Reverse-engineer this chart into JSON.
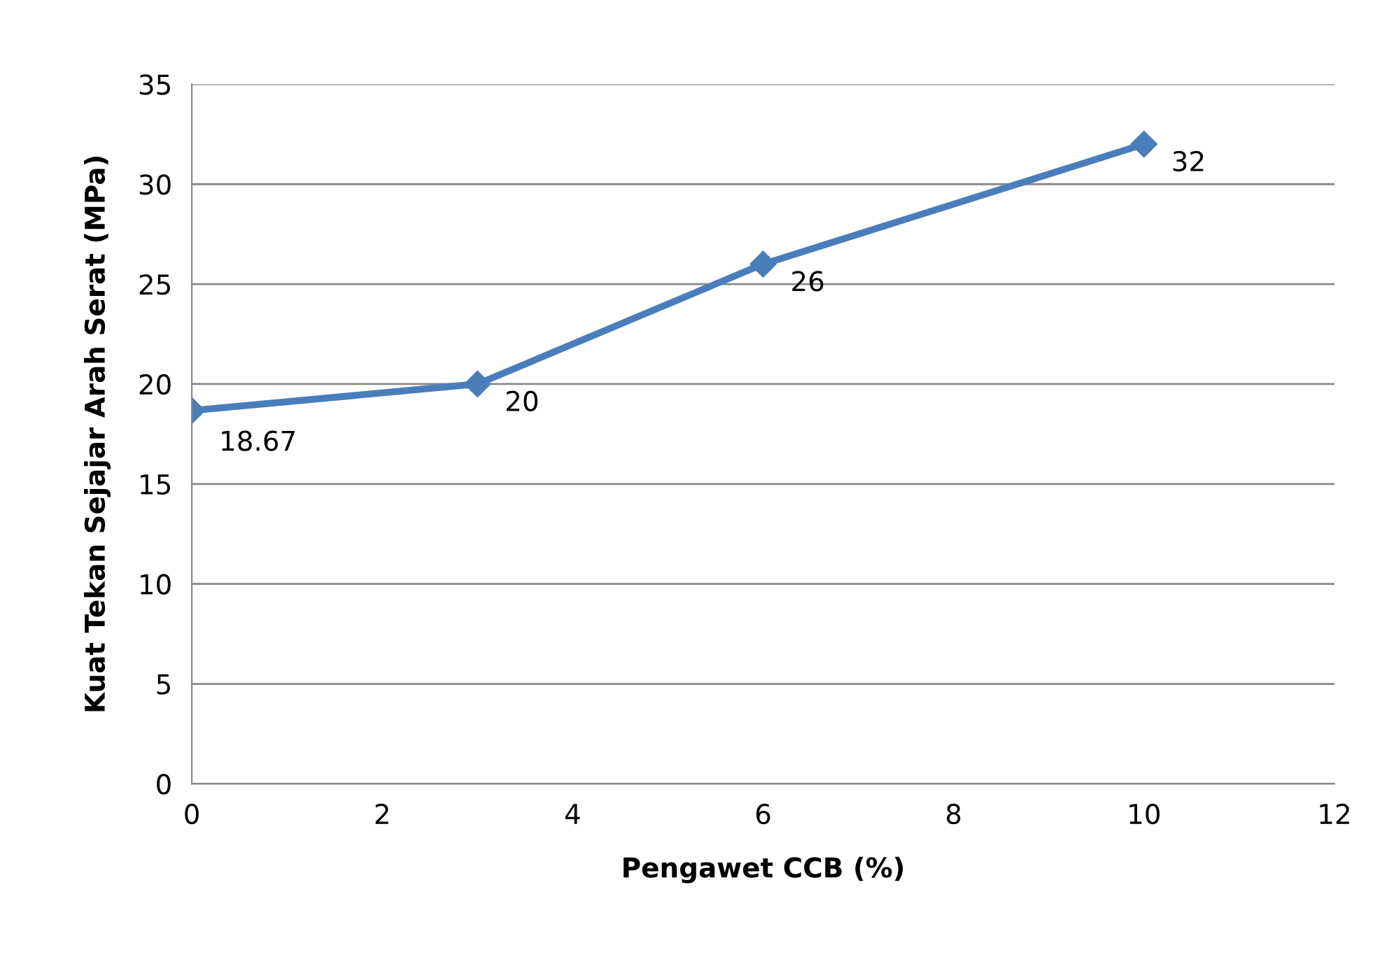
{
  "chart_data": {
    "type": "line",
    "xlabel": "Pengawet CCB (%)",
    "ylabel": "Kuat Tekan Sejajar Arah Serat (MPa)",
    "x": [
      0,
      3,
      6,
      10
    ],
    "series": [
      {
        "color": "#4a7ebb",
        "values": [
          18.67,
          20,
          26,
          32
        ]
      }
    ],
    "xlim": [
      0,
      12
    ],
    "xticks": [
      0,
      2,
      4,
      6,
      8,
      10,
      12
    ],
    "ylim": [
      0,
      35
    ],
    "yticks": [
      0,
      5,
      10,
      15,
      20,
      25,
      30,
      35
    ],
    "grid": "y",
    "marker": "diamond",
    "line_style": "solid",
    "data_labels": true
  }
}
